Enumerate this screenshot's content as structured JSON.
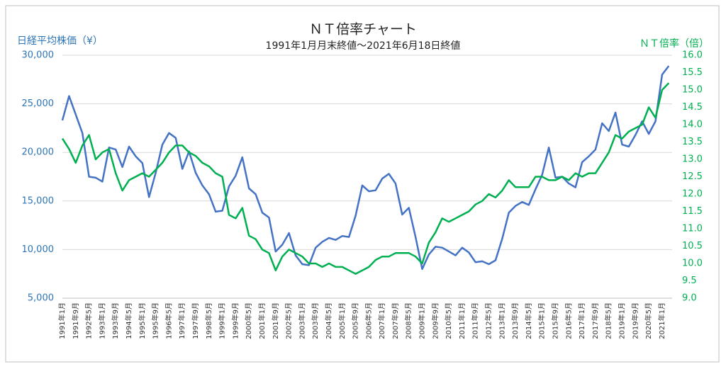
{
  "chart_data": {
    "type": "line",
    "title": "ＮＴ倍率チャート",
    "subtitle": "1991年1月月末終値～2021年6月18日終値",
    "y_label": "日経平均株価（¥）",
    "y2_label": "ＮＴ倍率（倍）",
    "categories": [
      "1991年1月",
      null,
      "1991年9月",
      null,
      "1992年5月",
      null,
      "1993年1月",
      null,
      "1993年9月",
      null,
      "1994年5月",
      null,
      "1995年1月",
      null,
      "1995年9月",
      null,
      "1996年5月",
      null,
      "1997年1月",
      null,
      "1997年9月",
      null,
      "1998年5月",
      null,
      "1999年1月",
      null,
      "1999年9月",
      null,
      "2000年5月",
      null,
      "2001年1月",
      null,
      "2001年9月",
      null,
      "2002年5月",
      null,
      "2003年1月",
      null,
      "2003年9月",
      null,
      "2004年5月",
      null,
      "2005年1月",
      null,
      "2005年9月",
      null,
      "2006年5月",
      null,
      "2007年1月",
      null,
      "2007年9月",
      null,
      "2008年5月",
      null,
      "2009年1月",
      null,
      "2009年9月",
      null,
      "2010年5月",
      null,
      "2011年1月",
      null,
      "2011年9月",
      null,
      "2012年5月",
      null,
      "2013年1月",
      null,
      "2013年9月",
      null,
      "2014年5月",
      null,
      "2015年1月",
      null,
      "2015年9月",
      null,
      "2016年5月",
      null,
      "2017年1月",
      null,
      "2017年9月",
      null,
      "2018年5月",
      null,
      "2019年1月",
      null,
      "2019年9月",
      null,
      "2020年5月",
      null,
      "2021年1月",
      null
    ],
    "series": [
      {
        "color": "#4472c4",
        "axis": "y",
        "values": [
          23300,
          25800,
          23900,
          22000,
          17500,
          17400,
          17000,
          20500,
          20300,
          18500,
          20600,
          19600,
          18900,
          15400,
          17900,
          20800,
          22000,
          21500,
          18300,
          20100,
          17900,
          16600,
          15700,
          13900,
          14000,
          16500,
          17600,
          19500,
          16300,
          15700,
          13800,
          13300,
          9800,
          10500,
          11700,
          9400,
          8500,
          8400,
          10200,
          10800,
          11200,
          11000,
          11400,
          11300,
          13500,
          16600,
          16000,
          16100,
          17300,
          17800,
          16800,
          13600,
          14300,
          11300,
          8000,
          9500,
          10300,
          10200,
          9800,
          9400,
          10200,
          9700,
          8700,
          8800,
          8500,
          8900,
          11100,
          13800,
          14500,
          14900,
          14600,
          16200,
          17700,
          20500,
          17400,
          17500,
          16800,
          16400,
          19000,
          19600,
          20300,
          23000,
          22200,
          24100,
          20800,
          20600,
          21800,
          23200,
          21900,
          23200,
          28000,
          28900
        ]
      },
      {
        "color": "#00b050",
        "axis": "y2",
        "values": [
          13.6,
          13.3,
          12.9,
          13.4,
          13.7,
          13.0,
          13.2,
          13.3,
          12.6,
          12.1,
          12.4,
          12.5,
          12.6,
          12.5,
          12.7,
          12.9,
          13.2,
          13.4,
          13.4,
          13.2,
          13.1,
          12.9,
          12.8,
          12.6,
          12.5,
          11.4,
          11.3,
          11.6,
          10.8,
          10.7,
          10.4,
          10.3,
          9.8,
          10.2,
          10.4,
          10.3,
          10.2,
          10.0,
          10.0,
          9.9,
          10.0,
          9.9,
          9.9,
          9.8,
          9.7,
          9.8,
          9.9,
          10.1,
          10.2,
          10.2,
          10.3,
          10.3,
          10.3,
          10.2,
          10.0,
          10.6,
          10.9,
          11.3,
          11.2,
          11.3,
          11.4,
          11.5,
          11.7,
          11.8,
          12.0,
          11.9,
          12.1,
          12.4,
          12.2,
          12.2,
          12.2,
          12.5,
          12.5,
          12.4,
          12.4,
          12.5,
          12.4,
          12.6,
          12.5,
          12.6,
          12.6,
          12.9,
          13.2,
          13.7,
          13.6,
          13.8,
          13.9,
          14.0,
          14.5,
          14.2,
          15.0,
          15.2
        ]
      }
    ],
    "ylim": [
      5000,
      30000
    ],
    "yticks": [
      {
        "value": 5000,
        "label": "5,000"
      },
      {
        "value": 10000,
        "label": "10,000"
      },
      {
        "value": 15000,
        "label": "15,000"
      },
      {
        "value": 20000,
        "label": "20,000"
      },
      {
        "value": 25000,
        "label": "25,000"
      },
      {
        "value": 30000,
        "label": "30,000"
      }
    ],
    "y2lim": [
      9,
      16
    ],
    "y2ticks": [
      {
        "value": 9,
        "label": "9.0"
      },
      9.5,
      {
        "value": 10,
        "label": "10.0"
      },
      10.5,
      {
        "value": 11,
        "label": "11.0"
      },
      11.5,
      {
        "value": 12,
        "label": "12.0"
      },
      12.5,
      {
        "value": 13,
        "label": "13.0"
      },
      13.5,
      {
        "value": 14,
        "label": "14.0"
      },
      14.5,
      {
        "value": 15,
        "label": "15.0"
      },
      15.5,
      {
        "value": 16,
        "label": "16.0"
      }
    ],
    "grid": true
  }
}
